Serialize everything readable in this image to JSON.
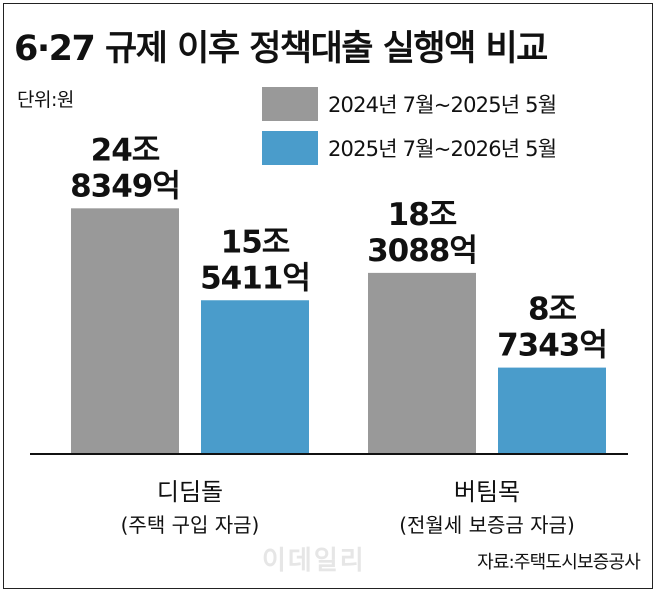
{
  "title": "6·27 규제 이후 정책대출 실행액 비교",
  "unit_label": "단위:원",
  "source": "자료:주택도시보증공사",
  "watermark": "이데일리",
  "colors": {
    "series_2024": "#999999",
    "series_2025": "#4a9ccb",
    "axis": "#111111"
  },
  "chart_data": {
    "type": "bar",
    "categories": [
      {
        "name": "디딤돌",
        "sub": "(주택 구입 자금)"
      },
      {
        "name": "버팀목",
        "sub": "(전월세 보증금 자금)"
      }
    ],
    "series": [
      {
        "name": "2024년 7월~2025년 5월",
        "values": [
          248349,
          183088
        ],
        "labels": [
          [
            "24조",
            "8349억"
          ],
          [
            "18조",
            "3088억"
          ]
        ]
      },
      {
        "name": "2025년 7월~2026년 5월",
        "values": [
          155411,
          87343
        ],
        "labels": [
          [
            "15조",
            "5411억"
          ],
          [
            "8조",
            "7343억"
          ]
        ]
      }
    ],
    "value_unit": "억원",
    "ylim": [
      0,
      372000
    ],
    "grid": false,
    "legend": "top-right"
  }
}
